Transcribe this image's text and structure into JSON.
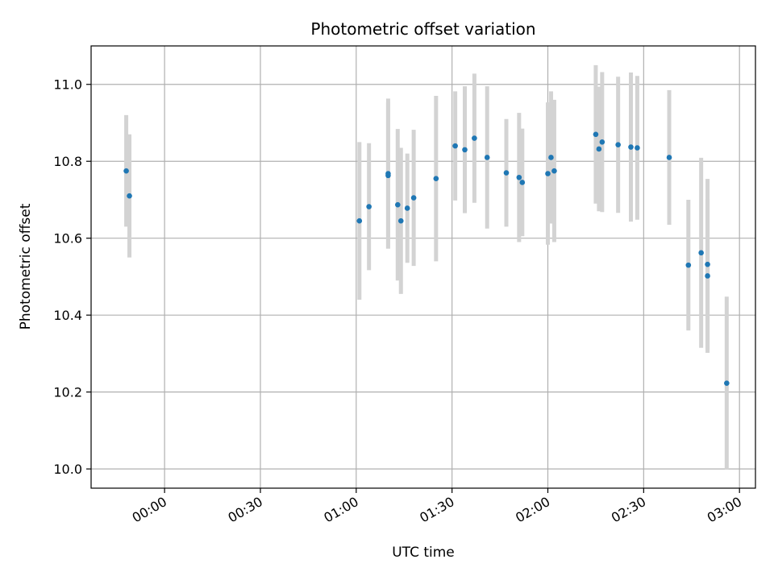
{
  "chart_data": {
    "type": "scatter",
    "title": "Photometric offset variation",
    "xlabel": "UTC time",
    "ylabel": "Photometric offset",
    "xlim": [
      "23:37",
      "03:05"
    ],
    "ylim": [
      9.95,
      11.1
    ],
    "x_ticks": [
      "00:00",
      "00:30",
      "01:00",
      "01:30",
      "02:00",
      "02:30",
      "03:00"
    ],
    "y_ticks": [
      10.0,
      10.2,
      10.4,
      10.6,
      10.8,
      11.0
    ],
    "y_tick_labels": [
      "10.0",
      "10.2",
      "10.4",
      "10.6",
      "10.8",
      "11.0"
    ],
    "grid": true,
    "point_color": "#1f77b4",
    "errorbar_color": "#d3d3d3",
    "points": [
      {
        "x": "23:48",
        "y": 10.775,
        "err": 0.145
      },
      {
        "x": "23:49",
        "y": 10.71,
        "err": 0.16
      },
      {
        "x": "01:01",
        "y": 10.645,
        "err": 0.205
      },
      {
        "x": "01:04",
        "y": 10.682,
        "err": 0.165
      },
      {
        "x": "01:10",
        "y": 10.763,
        "err": 0.19
      },
      {
        "x": "01:10",
        "y": 10.768,
        "err": 0.195
      },
      {
        "x": "01:13",
        "y": 10.687,
        "err": 0.197
      },
      {
        "x": "01:14",
        "y": 10.645,
        "err": 0.19
      },
      {
        "x": "01:16",
        "y": 10.678,
        "err": 0.142
      },
      {
        "x": "01:18",
        "y": 10.705,
        "err": 0.177
      },
      {
        "x": "01:25",
        "y": 10.755,
        "err": 0.215
      },
      {
        "x": "01:31",
        "y": 10.84,
        "err": 0.142
      },
      {
        "x": "01:34",
        "y": 10.83,
        "err": 0.165
      },
      {
        "x": "01:37",
        "y": 10.86,
        "err": 0.168
      },
      {
        "x": "01:41",
        "y": 10.81,
        "err": 0.185
      },
      {
        "x": "01:47",
        "y": 10.77,
        "err": 0.14
      },
      {
        "x": "01:51",
        "y": 10.758,
        "err": 0.168
      },
      {
        "x": "01:52",
        "y": 10.745,
        "err": 0.14
      },
      {
        "x": "02:00",
        "y": 10.768,
        "err": 0.185
      },
      {
        "x": "02:01",
        "y": 10.81,
        "err": 0.172
      },
      {
        "x": "02:02",
        "y": 10.775,
        "err": 0.185
      },
      {
        "x": "02:15",
        "y": 10.87,
        "err": 0.18
      },
      {
        "x": "02:16",
        "y": 10.832,
        "err": 0.162
      },
      {
        "x": "02:17",
        "y": 10.85,
        "err": 0.182
      },
      {
        "x": "02:22",
        "y": 10.843,
        "err": 0.177
      },
      {
        "x": "02:26",
        "y": 10.837,
        "err": 0.194
      },
      {
        "x": "02:28",
        "y": 10.835,
        "err": 0.187
      },
      {
        "x": "02:38",
        "y": 10.81,
        "err": 0.175
      },
      {
        "x": "02:44",
        "y": 10.53,
        "err": 0.17
      },
      {
        "x": "02:48",
        "y": 10.562,
        "err": 0.247
      },
      {
        "x": "02:50",
        "y": 10.502,
        "err": 0.2
      },
      {
        "x": "02:50",
        "y": 10.532,
        "err": 0.222
      },
      {
        "x": "02:56",
        "y": 10.223,
        "err": 0.225
      }
    ]
  }
}
